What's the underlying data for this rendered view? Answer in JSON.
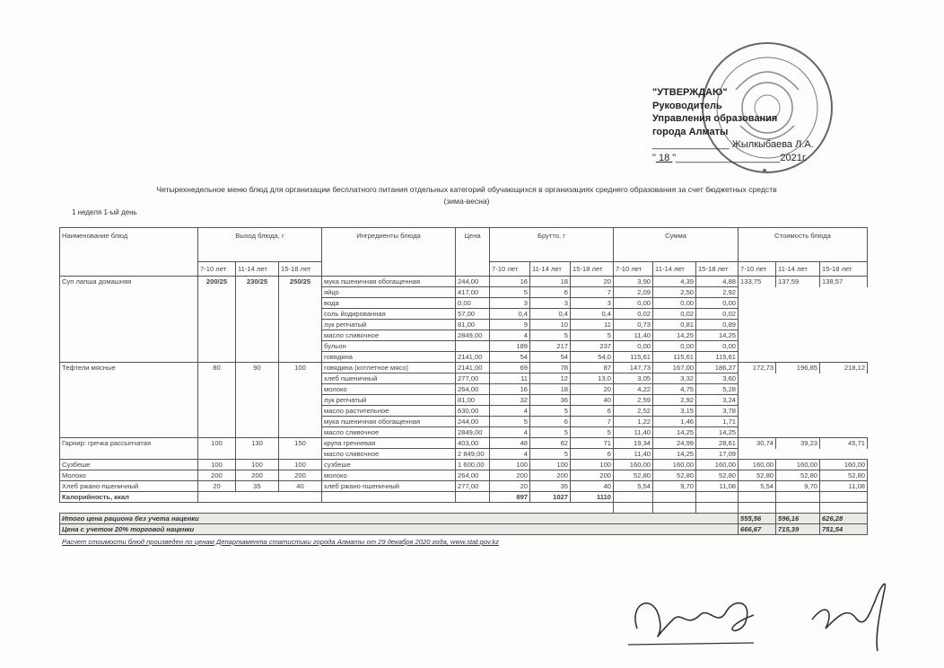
{
  "approval": {
    "lines": [
      "\"УТВЕРЖДАЮ\"",
      "Руководитель",
      "Управления образования",
      "города Алматы"
    ],
    "signer": "Жылкыбаева Л.А.",
    "date_day": "18",
    "date_year": "2021г.",
    "stamp_text": "«БАСҚАРМАСЫ» КОММУНАЛДЫҚ МЕМЛЕКЕТТІК МЕКЕМЕСІ БСН 000440001547"
  },
  "document": {
    "title": "Четырехнедельное меню блюд для организации бесплатного питания отдельных категорий обучающихся в организациях среднего образования за счет бюджетных средств",
    "season": "(зима-весна)",
    "day": "1 неделя 1-ый день"
  },
  "table": {
    "headers": {
      "name": "Наименование блюд",
      "yield": "Выход блюда, г",
      "ingredients": "Ингредиенты блюда",
      "price": "Цена",
      "brutto": "Брутто, г",
      "sum": "Сумма",
      "cost": "Стоимость блюда"
    },
    "age_groups": [
      "7-10 лет",
      "11-14 лет",
      "15-18 лет"
    ],
    "dishes": [
      {
        "name": "Суп лапша домашняя",
        "yield": [
          "200/25",
          "230/25",
          "250/25"
        ],
        "yield_bold": true,
        "cost": [
          "133,75",
          "137,59",
          "138,57"
        ],
        "cost_align": "left",
        "ingredients": [
          {
            "name": "мука пшеничная обогащенная",
            "price": "244,00",
            "brutto": [
              "16",
              "18",
              "20"
            ],
            "sum": [
              "3,90",
              "4,39",
              "4,88"
            ]
          },
          {
            "name": "яйцо",
            "price": "417,00",
            "brutto": [
              "5",
              "6",
              "7"
            ],
            "sum": [
              "2,09",
              "2,50",
              "2,92"
            ]
          },
          {
            "name": "вода",
            "price": "0,00",
            "brutto": [
              "3",
              "3",
              "3"
            ],
            "sum": [
              "0,00",
              "0,00",
              "0,00"
            ]
          },
          {
            "name": "соль йодированная",
            "price": "57,00",
            "brutto": [
              "0,4",
              "0,4",
              "0,4"
            ],
            "sum": [
              "0,02",
              "0,02",
              "0,02"
            ]
          },
          {
            "name": "лук репчатый",
            "price": "81,00",
            "brutto": [
              "9",
              "10",
              "11"
            ],
            "sum": [
              "0,73",
              "0,81",
              "0,89"
            ]
          },
          {
            "name": "масло сливочное",
            "price": "2849,00",
            "brutto": [
              "4",
              "5",
              "5"
            ],
            "sum": [
              "11,40",
              "14,25",
              "14,25"
            ]
          },
          {
            "name": "бульон",
            "price": "",
            "brutto": [
              "189",
              "217",
              "237"
            ],
            "sum": [
              "0,00",
              "0,00",
              "0,00"
            ]
          },
          {
            "name": "говядина",
            "price": "2141,00",
            "brutto": [
              "54",
              "54",
              "54,0"
            ],
            "sum": [
              "115,61",
              "115,61",
              "115,61"
            ]
          }
        ]
      },
      {
        "name": "Тефтели мясные",
        "yield": [
          "80",
          "90",
          "100"
        ],
        "cost": [
          "172,73",
          "196,85",
          "218,12"
        ],
        "ingredients": [
          {
            "name": "говядина (котлетное мясо)",
            "price": "2141,00",
            "brutto": [
              "69",
              "78",
              "87"
            ],
            "sum": [
              "147,73",
              "167,00",
              "186,27"
            ]
          },
          {
            "name": "хлеб пшеничный",
            "price": "277,00",
            "brutto": [
              "11",
              "12",
              "13,0"
            ],
            "sum": [
              "3,05",
              "3,32",
              "3,60"
            ]
          },
          {
            "name": "молоко",
            "price": "264,00",
            "brutto": [
              "16",
              "18",
              "20"
            ],
            "sum": [
              "4,22",
              "4,75",
              "5,28"
            ]
          },
          {
            "name": "лук репчатый",
            "price": "81,00",
            "brutto": [
              "32",
              "36",
              "40"
            ],
            "sum": [
              "2,59",
              "2,92",
              "3,24"
            ]
          },
          {
            "name": "масло растительное",
            "price": "630,00",
            "brutto": [
              "4",
              "5",
              "6"
            ],
            "sum": [
              "2,52",
              "3,15",
              "3,78"
            ]
          },
          {
            "name": "мука пшеничная обогащенная",
            "price": "244,00",
            "brutto": [
              "5",
              "6",
              "7"
            ],
            "sum": [
              "1,22",
              "1,46",
              "1,71"
            ]
          },
          {
            "name": "масло сливочное",
            "price": "2849,00",
            "brutto": [
              "4",
              "5",
              "5"
            ],
            "sum": [
              "11,40",
              "14,25",
              "14,25"
            ]
          }
        ]
      },
      {
        "name": "Гарнир: гречка рассыпчатая",
        "yield": [
          "100",
          "130",
          "150"
        ],
        "cost": [
          "30,74",
          "39,23",
          "45,71"
        ],
        "ingredients": [
          {
            "name": "крупа гречневая",
            "price": "403,00",
            "brutto": [
              "48",
              "62",
              "71"
            ],
            "sum": [
              "19,34",
              "24,99",
              "28,61"
            ]
          },
          {
            "name": "масло сливочное",
            "price": "2 849,00",
            "brutto": [
              "4",
              "5",
              "6"
            ],
            "sum": [
              "11,40",
              "14,25",
              "17,09"
            ]
          }
        ]
      },
      {
        "name": "Сузбеше",
        "yield": [
          "100",
          "100",
          "100"
        ],
        "cost": [
          "160,00",
          "160,00",
          "160,00"
        ],
        "ingredients": [
          {
            "name": "сузбеше",
            "price": "1 600,00",
            "brutto": [
              "100",
              "100",
              "100"
            ],
            "sum": [
              "160,00",
              "160,00",
              "160,00"
            ]
          }
        ]
      },
      {
        "name": "Молоко",
        "yield": [
          "200",
          "200",
          "200"
        ],
        "cost": [
          "52,80",
          "52,80",
          "52,80"
        ],
        "ingredients": [
          {
            "name": "молоко",
            "price": "264,00",
            "brutto": [
              "200",
              "200",
              "200"
            ],
            "sum": [
              "52,80",
              "52,80",
              "52,80"
            ]
          }
        ]
      },
      {
        "name": "Хлеб ржано-пшеничный",
        "yield": [
          "20",
          "35",
          "40"
        ],
        "cost": [
          "5,54",
          "9,70",
          "11,08"
        ],
        "ingredients": [
          {
            "name": "хлеб ржано-пшеничный",
            "price": "277,00",
            "brutto": [
              "20",
              "35",
              "40"
            ],
            "sum": [
              "5,54",
              "9,70",
              "11,08"
            ]
          }
        ]
      }
    ],
    "calories": {
      "label": "Калорийность, ккал",
      "values": [
        "897",
        "1027",
        "1110"
      ]
    },
    "totals": [
      {
        "label": "Итого цена рациона без учета наценки",
        "values": [
          "555,56",
          "596,16",
          "626,28"
        ]
      },
      {
        "label": "Цена с учетом 20% торговой наценки",
        "values": [
          "666,67",
          "715,39",
          "751,54"
        ]
      }
    ]
  },
  "footnote": "Расчет стоимости блюд произведен по ценам Департамента статистики города Алматы от 29 декабря 2020 года, www.stat.gov.kz"
}
